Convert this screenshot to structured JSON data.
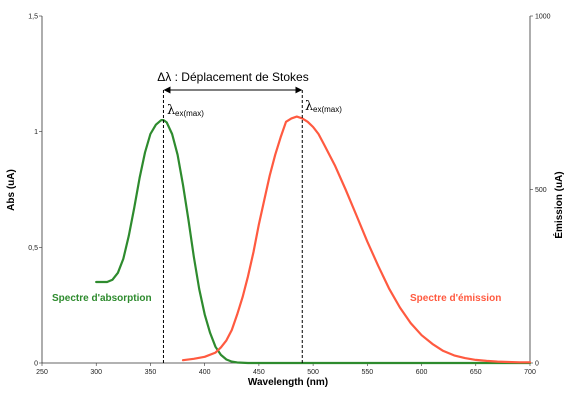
{
  "chart_data": {
    "type": "line",
    "x_axis": {
      "label": "Wavelength (nm)",
      "range": [
        250,
        700
      ],
      "ticks": [
        "250",
        "300",
        "350",
        "400",
        "450",
        "500",
        "550",
        "600",
        "650",
        "700"
      ]
    },
    "y_left": {
      "label": "Abs (uA)",
      "range": [
        0,
        1.5
      ],
      "ticks": [
        "0",
        "0,5",
        "1",
        "1,5"
      ]
    },
    "y_right": {
      "label": "Émission (uA)",
      "range": [
        0,
        1000
      ],
      "ticks": [
        "0",
        "500",
        "1000"
      ]
    },
    "series": [
      {
        "name": "Spectre d'absorption",
        "color": "#2e8b2e",
        "axis": "left",
        "x": [
          300,
          305,
          310,
          315,
          320,
          325,
          330,
          335,
          340,
          345,
          350,
          355,
          360,
          362,
          365,
          370,
          375,
          380,
          385,
          390,
          395,
          400,
          405,
          410,
          415,
          420,
          425,
          430,
          440,
          450,
          700
        ],
        "y": [
          0.35,
          0.35,
          0.35,
          0.36,
          0.39,
          0.45,
          0.55,
          0.67,
          0.8,
          0.91,
          0.99,
          1.03,
          1.05,
          1.05,
          1.04,
          0.99,
          0.9,
          0.77,
          0.62,
          0.46,
          0.32,
          0.21,
          0.13,
          0.07,
          0.035,
          0.015,
          0.006,
          0.002,
          0.0,
          0.0,
          0.0
        ]
      },
      {
        "name": "Spectre d'émission",
        "color": "#ff5a40",
        "axis": "right",
        "x": [
          380,
          390,
          400,
          410,
          415,
          420,
          425,
          430,
          435,
          440,
          445,
          450,
          455,
          460,
          465,
          470,
          475,
          480,
          485,
          490,
          495,
          500,
          505,
          510,
          520,
          530,
          540,
          550,
          560,
          570,
          580,
          590,
          600,
          610,
          620,
          630,
          640,
          650,
          660,
          670,
          680,
          690,
          700
        ],
        "y": [
          8,
          12,
          18,
          30,
          45,
          65,
          95,
          140,
          190,
          250,
          320,
          400,
          470,
          540,
          600,
          650,
          695,
          705,
          710,
          705,
          695,
          680,
          660,
          630,
          570,
          500,
          425,
          350,
          280,
          215,
          160,
          115,
          80,
          55,
          35,
          22,
          14,
          9,
          6,
          4,
          3,
          2,
          2
        ]
      }
    ],
    "annotations": {
      "stokes_shift": "Δλ : Déplacement de Stokes",
      "lambda_left": "λ",
      "lambda_left_sub": "ex(max)",
      "lambda_right": "λ",
      "lambda_right_sub": "ex(max)",
      "marker_left_x": 362,
      "marker_right_x": 490
    },
    "labels": {
      "absorption": "Spectre d'absorption",
      "emission": "Spectre d'émission"
    },
    "grid": false
  }
}
